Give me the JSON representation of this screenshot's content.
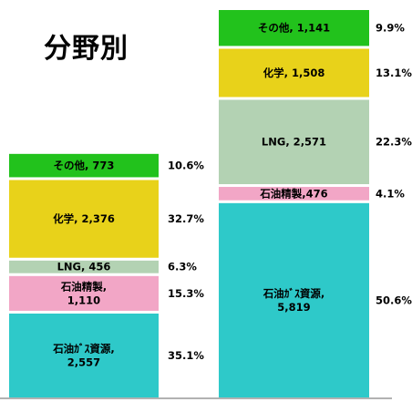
{
  "title": "分野別",
  "chart_data": {
    "type": "bar",
    "stacked": true,
    "title": "分野別",
    "categories": [
      "",
      ""
    ],
    "series": [
      {
        "name": "石油ｶﾞｽ資源",
        "values": [
          2557,
          5819
        ],
        "labels": [
          "石油ｶﾞｽ資源,|2,557",
          "石油ｶﾞｽ資源,|5,819"
        ],
        "percents": [
          "35.1%",
          "50.6%"
        ],
        "color": "#2ec9c9"
      },
      {
        "name": "石油精製",
        "values": [
          1110,
          476
        ],
        "labels": [
          "石油精製,|1,110",
          "石油精製,476"
        ],
        "percents": [
          "15.3%",
          "4.1%"
        ],
        "color": "#f2a6c6"
      },
      {
        "name": "LNG",
        "values": [
          456,
          2571
        ],
        "labels": [
          "LNG, 456",
          "LNG, 2,571"
        ],
        "percents": [
          "6.3%",
          "22.3%"
        ],
        "color": "#b3d2b3"
      },
      {
        "name": "化学",
        "values": [
          2376,
          1508
        ],
        "labels": [
          "化学, 2,376",
          "化学, 1,508"
        ],
        "percents": [
          "32.7%",
          "13.1%"
        ],
        "color": "#e8d21a"
      },
      {
        "name": "その他",
        "values": [
          773,
          1141
        ],
        "labels": [
          "その他, 773",
          "その他, 1,141"
        ],
        "percents": [
          "10.6%",
          "9.9%"
        ],
        "color": "#22c21c"
      }
    ]
  }
}
